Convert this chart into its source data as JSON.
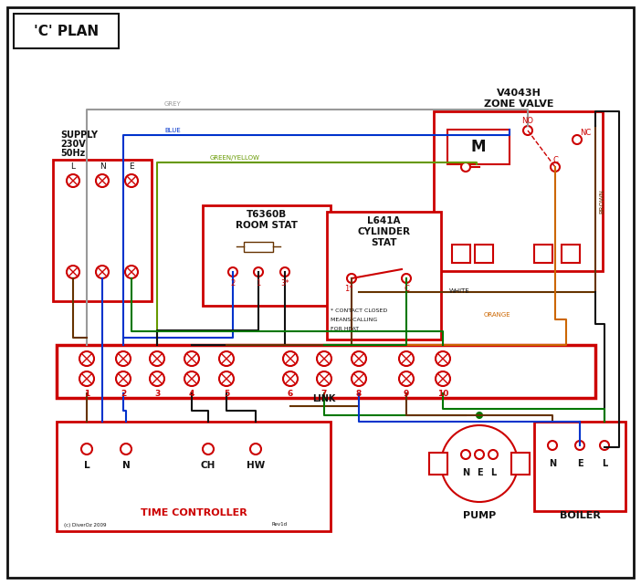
{
  "title": "'C' PLAN",
  "bg": "#ffffff",
  "red": "#cc0000",
  "blue": "#0033cc",
  "green": "#007700",
  "grey": "#999999",
  "brown": "#663300",
  "orange": "#cc6600",
  "black": "#111111",
  "gy": "#669900",
  "figsize": [
    7.02,
    6.41
  ],
  "dpi": 100,
  "supply_labels": [
    "SUPPLY",
    "230V",
    "50Hz"
  ],
  "supply_term_labels": [
    "L",
    "N",
    "E"
  ],
  "zv_title1": "V4043H",
  "zv_title2": "ZONE VALVE",
  "rs_title1": "T6360B",
  "rs_title2": "ROOM STAT",
  "cs_title1": "L641A",
  "cs_title2": "CYLINDER",
  "cs_title3": "STAT",
  "tc_title": "TIME CONTROLLER",
  "tc_terms": [
    "L",
    "N",
    "CH",
    "HW"
  ],
  "pump_title": "PUMP",
  "pump_terms": [
    "N",
    "E",
    "L"
  ],
  "boiler_title": "BOILER",
  "boiler_terms": [
    "N",
    "E",
    "L"
  ],
  "terminal_nums": [
    "1",
    "2",
    "3",
    "4",
    "5",
    "6",
    "7",
    "8",
    "9",
    "10"
  ],
  "wire_labels": [
    "GREY",
    "BLUE",
    "GREEN/YELLOW",
    "BROWN",
    "WHITE",
    "ORANGE"
  ],
  "note_lines": [
    "* CONTACT CLOSED",
    "MEANS CALLING",
    "FOR HEAT"
  ],
  "link_label": "LINK",
  "copyright": "(c) DiverOz 2009",
  "rev": "Rev1d"
}
